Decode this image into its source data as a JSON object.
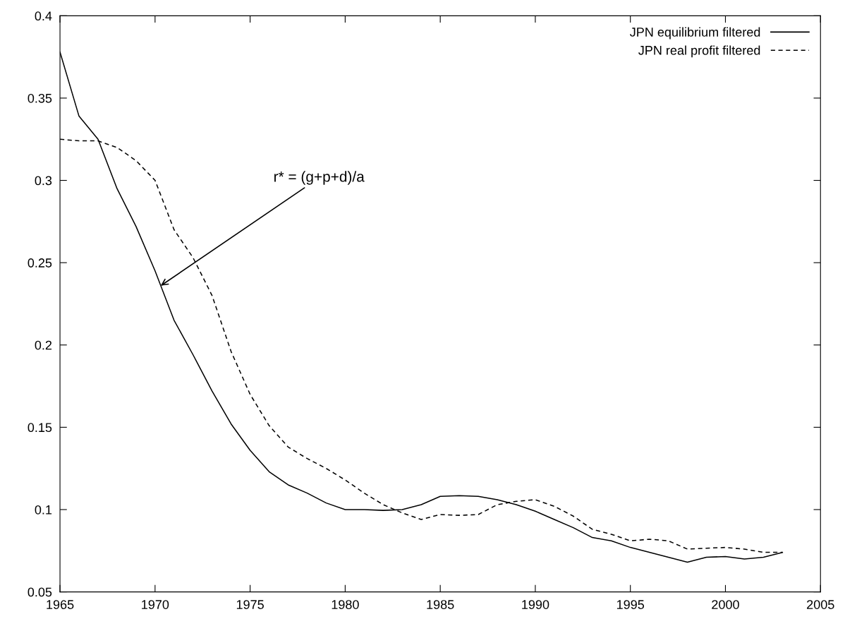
{
  "chart_data": {
    "type": "line",
    "x": [
      1965,
      1966,
      1967,
      1968,
      1969,
      1970,
      1971,
      1972,
      1973,
      1974,
      1975,
      1976,
      1977,
      1978,
      1979,
      1980,
      1981,
      1982,
      1983,
      1984,
      1985,
      1986,
      1987,
      1988,
      1989,
      1990,
      1991,
      1992,
      1993,
      1994,
      1995,
      1996,
      1997,
      1998,
      1999,
      2000,
      2001,
      2002,
      2003
    ],
    "series": [
      {
        "name": "JPN equilibrium filtered",
        "color": "#000000",
        "line_style": "solid",
        "values": [
          0.378,
          0.339,
          0.325,
          0.295,
          0.272,
          0.245,
          0.215,
          0.194,
          0.172,
          0.152,
          0.136,
          0.123,
          0.115,
          0.11,
          0.104,
          0.1,
          0.1,
          0.0995,
          0.1,
          0.103,
          0.108,
          0.1085,
          0.108,
          0.106,
          0.103,
          0.099,
          0.094,
          0.089,
          0.083,
          0.081,
          0.077,
          0.074,
          0.071,
          0.068,
          0.071,
          0.0715,
          0.07,
          0.071,
          0.074
        ]
      },
      {
        "name": "JPN real profit filtered",
        "color": "#000000",
        "line_style": "dashed",
        "values": [
          0.325,
          0.324,
          0.324,
          0.32,
          0.312,
          0.3,
          0.27,
          0.253,
          0.23,
          0.196,
          0.17,
          0.151,
          0.138,
          0.131,
          0.125,
          0.118,
          0.11,
          0.103,
          0.098,
          0.094,
          0.097,
          0.0965,
          0.097,
          0.103,
          0.105,
          0.106,
          0.102,
          0.096,
          0.088,
          0.085,
          0.081,
          0.082,
          0.081,
          0.076,
          0.0765,
          0.077,
          0.076,
          0.074,
          0.074
        ]
      }
    ],
    "xlim": [
      1965,
      2005
    ],
    "xticks": [
      1965,
      1970,
      1975,
      1980,
      1985,
      1990,
      1995,
      2000,
      2005
    ],
    "ylim": [
      0.05,
      0.4
    ],
    "yticks": [
      0.05,
      0.1,
      0.15,
      0.2,
      0.25,
      0.3,
      0.35,
      0.4
    ],
    "annotations": [
      {
        "text": "r* = (g+p+d)/a",
        "x": 1970.3,
        "y": 0.236
      }
    ],
    "legend": "top right",
    "grid": false,
    "marker": "none"
  }
}
